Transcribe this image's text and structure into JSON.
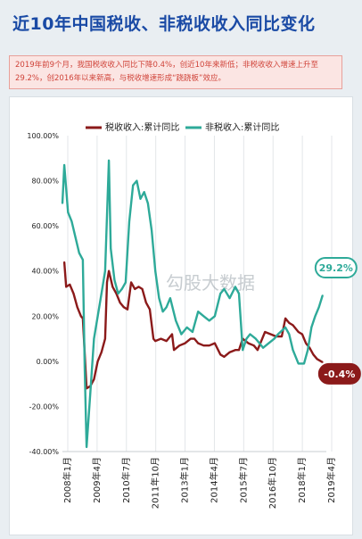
{
  "title": "近10年中国税收、非税收收入同比变化",
  "note": "2019年前9个月，我国税收收入同比下降0.4%，创近10年来新低；非税收收入增速上升至29.2%，创2016年以来新高，与税收增速形成“跷跷板”效应。",
  "watermark": "勾股大数据",
  "colors": {
    "tax": "#8b1a1a",
    "nontax": "#2eaa99",
    "title": "#1a4aa5",
    "note": "#d0443a"
  },
  "chart_data": {
    "type": "line",
    "xlabel": "",
    "ylabel": "",
    "ylim": [
      -40,
      100
    ],
    "y_ticks": [
      "100.00%",
      "80.00%",
      "60.00%",
      "40.00%",
      "20.00%",
      "0.00%",
      "-20.00%",
      "-40.00%"
    ],
    "x_ticks": [
      "2008年1月",
      "2009年4月",
      "2010年7月",
      "2011年10月",
      "2013年1月",
      "2014年4月",
      "2015年7月",
      "2016年10月",
      "2018年1月",
      "2019年4月"
    ],
    "legend_position": "top",
    "grid": "vertical",
    "series": [
      {
        "name": "税收收入:累计同比",
        "color": "#8b1a1a",
        "points": [
          [
            "2008-02",
            44
          ],
          [
            "2008-03",
            33
          ],
          [
            "2008-05",
            34
          ],
          [
            "2008-07",
            30
          ],
          [
            "2008-09",
            24
          ],
          [
            "2008-11",
            20
          ],
          [
            "2008-12",
            19
          ],
          [
            "2009-02",
            -12
          ],
          [
            "2009-04",
            -11
          ],
          [
            "2009-06",
            -8
          ],
          [
            "2009-08",
            0
          ],
          [
            "2009-10",
            4
          ],
          [
            "2009-12",
            10
          ],
          [
            "2010-01",
            35
          ],
          [
            "2010-02",
            40
          ],
          [
            "2010-04",
            33
          ],
          [
            "2010-06",
            30
          ],
          [
            "2010-08",
            26
          ],
          [
            "2010-10",
            24
          ],
          [
            "2010-12",
            23
          ],
          [
            "2011-02",
            35
          ],
          [
            "2011-04",
            32
          ],
          [
            "2011-06",
            33
          ],
          [
            "2011-08",
            32
          ],
          [
            "2011-10",
            26
          ],
          [
            "2011-12",
            23
          ],
          [
            "2012-02",
            10
          ],
          [
            "2012-03",
            9
          ],
          [
            "2012-06",
            10
          ],
          [
            "2012-09",
            9
          ],
          [
            "2012-12",
            12
          ],
          [
            "2013-01",
            5
          ],
          [
            "2013-04",
            7
          ],
          [
            "2013-07",
            8
          ],
          [
            "2013-10",
            10
          ],
          [
            "2013-12",
            10
          ],
          [
            "2014-02",
            8
          ],
          [
            "2014-05",
            7
          ],
          [
            "2014-08",
            7
          ],
          [
            "2014-11",
            8
          ],
          [
            "2015-02",
            3
          ],
          [
            "2015-04",
            2
          ],
          [
            "2015-07",
            4
          ],
          [
            "2015-10",
            5
          ],
          [
            "2015-12",
            5
          ],
          [
            "2016-02",
            10
          ],
          [
            "2016-05",
            8
          ],
          [
            "2016-08",
            7
          ],
          [
            "2016-10",
            5
          ],
          [
            "2017-02",
            13
          ],
          [
            "2017-05",
            12
          ],
          [
            "2017-08",
            11
          ],
          [
            "2017-11",
            11
          ],
          [
            "2018-01",
            19
          ],
          [
            "2018-03",
            17
          ],
          [
            "2018-05",
            16
          ],
          [
            "2018-08",
            13
          ],
          [
            "2018-10",
            12
          ],
          [
            "2018-12",
            8
          ],
          [
            "2019-02",
            6
          ],
          [
            "2019-04",
            3
          ],
          [
            "2019-06",
            1
          ],
          [
            "2019-09",
            -0.4
          ]
        ]
      },
      {
        "name": "非税收入:累计同比",
        "color": "#2eaa99",
        "points": [
          [
            "2008-01",
            70
          ],
          [
            "2008-02",
            87
          ],
          [
            "2008-04",
            66
          ],
          [
            "2008-06",
            62
          ],
          [
            "2008-08",
            55
          ],
          [
            "2008-10",
            48
          ],
          [
            "2008-12",
            45
          ],
          [
            "2009-01",
            -3
          ],
          [
            "2009-02",
            -38
          ],
          [
            "2009-04",
            -14
          ],
          [
            "2009-06",
            10
          ],
          [
            "2009-08",
            20
          ],
          [
            "2009-10",
            30
          ],
          [
            "2009-12",
            40
          ],
          [
            "2010-02",
            89
          ],
          [
            "2010-03",
            50
          ],
          [
            "2010-05",
            36
          ],
          [
            "2010-07",
            30
          ],
          [
            "2010-09",
            32
          ],
          [
            "2010-11",
            35
          ],
          [
            "2011-01",
            62
          ],
          [
            "2011-03",
            78
          ],
          [
            "2011-05",
            80
          ],
          [
            "2011-07",
            72
          ],
          [
            "2011-09",
            75
          ],
          [
            "2011-11",
            70
          ],
          [
            "2012-01",
            58
          ],
          [
            "2012-03",
            40
          ],
          [
            "2012-05",
            28
          ],
          [
            "2012-07",
            22
          ],
          [
            "2012-09",
            24
          ],
          [
            "2012-11",
            28
          ],
          [
            "2013-02",
            18
          ],
          [
            "2013-05",
            12
          ],
          [
            "2013-08",
            15
          ],
          [
            "2013-11",
            13
          ],
          [
            "2014-02",
            22
          ],
          [
            "2014-05",
            20
          ],
          [
            "2014-08",
            18
          ],
          [
            "2014-11",
            20
          ],
          [
            "2015-02",
            30
          ],
          [
            "2015-04",
            32
          ],
          [
            "2015-07",
            28
          ],
          [
            "2015-10",
            33
          ],
          [
            "2015-12",
            30
          ],
          [
            "2016-02",
            5
          ],
          [
            "2016-04",
            10
          ],
          [
            "2016-06",
            12
          ],
          [
            "2016-09",
            10
          ],
          [
            "2016-11",
            8
          ],
          [
            "2017-01",
            6
          ],
          [
            "2017-04",
            8
          ],
          [
            "2017-07",
            10
          ],
          [
            "2017-09",
            12
          ],
          [
            "2018-01",
            15
          ],
          [
            "2018-03",
            12
          ],
          [
            "2018-05",
            5
          ],
          [
            "2018-08",
            -1
          ],
          [
            "2018-11",
            -1
          ],
          [
            "2019-01",
            5
          ],
          [
            "2019-03",
            15
          ],
          [
            "2019-05",
            20
          ],
          [
            "2019-07",
            24
          ],
          [
            "2019-09",
            29.2
          ]
        ]
      }
    ],
    "end_labels": [
      {
        "series": "非税收入:累计同比",
        "text": "29.2%"
      },
      {
        "series": "税收收入:累计同比",
        "text": "-0.4%"
      }
    ]
  }
}
